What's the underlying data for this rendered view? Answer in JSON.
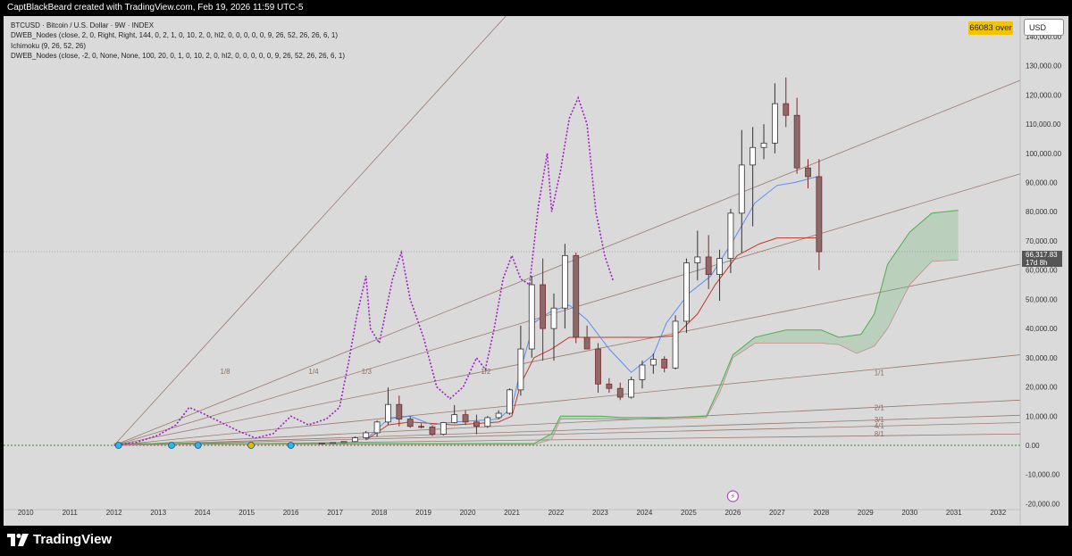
{
  "header": {
    "author_line": "CaptBlackBeard created with TradingView.com, Feb 19, 2026 11:59 UTC-5"
  },
  "legend": {
    "symbol": "BTCUSD · Bitcoin / U.S. Dollar · 9W · INDEX",
    "indicator_1": "DWEB_Nodes (close, 2, 0, Right, Right, 144, 0, 2, 1, 0, 10, 2, 0, hl2, 0, 0, 0, 0, 0, 9, 26, 52, 26, 26, 6, 1)",
    "indicator_2": "Ichimoku (9, 26, 52, 26)",
    "indicator_3": "DWEB_Nodes (close, -2, 0, None, None, 100, 20, 0, 1, 0, 10, 2, 0, hl2, 0, 0, 0, 0, 0, 9, 26, 52, 26, 26, 6, 1)"
  },
  "badges": {
    "over": "66083 over",
    "currency": "USD",
    "last_price": "66,317.83",
    "countdown": "17d 8h"
  },
  "branding": {
    "logo_text": "TradingView"
  },
  "colors": {
    "plot_bg": "#dadada",
    "up_candle": "#ffffff",
    "down_candle": "#8c6a6a",
    "wick": "#7a2a2a",
    "tenkan": "#5a8ef0",
    "kijun": "#c0392b",
    "dotted_overlay": "#a020c0",
    "cloud_green": "#4caf50",
    "fan_line": "#9a7a70"
  },
  "chart_data": {
    "type": "candlestick",
    "timeframe": "9W",
    "y_axis": {
      "ticks": [
        -20000,
        -10000,
        0,
        10000,
        20000,
        30000,
        40000,
        50000,
        60000,
        70000,
        80000,
        90000,
        100000,
        110000,
        120000,
        130000,
        140000
      ],
      "tick_labels": [
        "-20,000.00",
        "-10,000.00",
        "0.00",
        "10,000.00",
        "20,000.00",
        "30,000.00",
        "40,000.00",
        "50,000.00",
        "60,000.00",
        "70,000.00",
        "80,000.00",
        "90,000.00",
        "100,000.00",
        "110,000.00",
        "120,000.00",
        "130,000.00",
        "140,000.00"
      ],
      "range": [
        -22000,
        147000
      ]
    },
    "x_axis": {
      "labels": [
        "2010",
        "2011",
        "2012",
        "2013",
        "2014",
        "2015",
        "2016",
        "2017",
        "2018",
        "2019",
        "2020",
        "2021",
        "2022",
        "2023",
        "2024",
        "2025",
        "2026",
        "2027",
        "2028",
        "2029",
        "2030",
        "2031",
        "2032"
      ],
      "range": [
        2009.5,
        2032.5
      ]
    },
    "candles": [
      {
        "t": 2016.7,
        "o": 600,
        "h": 800,
        "l": 580,
        "c": 780
      },
      {
        "t": 2016.95,
        "o": 780,
        "h": 1000,
        "l": 740,
        "c": 960
      },
      {
        "t": 2017.2,
        "o": 960,
        "h": 1350,
        "l": 900,
        "c": 1300
      },
      {
        "t": 2017.45,
        "o": 1300,
        "h": 3000,
        "l": 1200,
        "c": 2600
      },
      {
        "t": 2017.7,
        "o": 2600,
        "h": 4900,
        "l": 2000,
        "c": 4300
      },
      {
        "t": 2017.95,
        "o": 4300,
        "h": 8500,
        "l": 3000,
        "c": 8000
      },
      {
        "t": 2018.2,
        "o": 8000,
        "h": 19800,
        "l": 7000,
        "c": 14000
      },
      {
        "t": 2018.45,
        "o": 14000,
        "h": 17000,
        "l": 6500,
        "c": 9000
      },
      {
        "t": 2018.7,
        "o": 9000,
        "h": 10000,
        "l": 6000,
        "c": 6500
      },
      {
        "t": 2018.95,
        "o": 6500,
        "h": 7500,
        "l": 5800,
        "c": 6300
      },
      {
        "t": 2019.2,
        "o": 6300,
        "h": 6700,
        "l": 3200,
        "c": 3800
      },
      {
        "t": 2019.45,
        "o": 3800,
        "h": 8000,
        "l": 3400,
        "c": 7800
      },
      {
        "t": 2019.7,
        "o": 7800,
        "h": 13800,
        "l": 7500,
        "c": 10500
      },
      {
        "t": 2019.95,
        "o": 10500,
        "h": 12000,
        "l": 7000,
        "c": 8000
      },
      {
        "t": 2020.2,
        "o": 8000,
        "h": 10500,
        "l": 3800,
        "c": 6500
      },
      {
        "t": 2020.45,
        "o": 6500,
        "h": 10000,
        "l": 6000,
        "c": 9500
      },
      {
        "t": 2020.7,
        "o": 9500,
        "h": 12000,
        "l": 9000,
        "c": 11000
      },
      {
        "t": 2020.95,
        "o": 11000,
        "h": 19500,
        "l": 10500,
        "c": 19000
      },
      {
        "t": 2021.2,
        "o": 19000,
        "h": 41000,
        "l": 17000,
        "c": 33000
      },
      {
        "t": 2021.45,
        "o": 33000,
        "h": 58000,
        "l": 30000,
        "c": 55000
      },
      {
        "t": 2021.7,
        "o": 55000,
        "h": 64000,
        "l": 29000,
        "c": 40000
      },
      {
        "t": 2021.95,
        "o": 40000,
        "h": 52000,
        "l": 29000,
        "c": 47000
      },
      {
        "t": 2022.2,
        "o": 47000,
        "h": 69000,
        "l": 40000,
        "c": 65000
      },
      {
        "t": 2022.45,
        "o": 65000,
        "h": 66000,
        "l": 35000,
        "c": 37000
      },
      {
        "t": 2022.7,
        "o": 37000,
        "h": 41000,
        "l": 33000,
        "c": 33000
      },
      {
        "t": 2022.95,
        "o": 33000,
        "h": 35000,
        "l": 18000,
        "c": 21000
      },
      {
        "t": 2023.2,
        "o": 21000,
        "h": 23000,
        "l": 18000,
        "c": 19500
      },
      {
        "t": 2023.45,
        "o": 19500,
        "h": 21500,
        "l": 15500,
        "c": 16500
      },
      {
        "t": 2023.7,
        "o": 16500,
        "h": 23500,
        "l": 16000,
        "c": 22500
      },
      {
        "t": 2023.95,
        "o": 22500,
        "h": 29000,
        "l": 19500,
        "c": 27500
      },
      {
        "t": 2024.2,
        "o": 27500,
        "h": 31500,
        "l": 24500,
        "c": 29500
      },
      {
        "t": 2024.45,
        "o": 29500,
        "h": 30500,
        "l": 25000,
        "c": 26500
      },
      {
        "t": 2024.7,
        "o": 26500,
        "h": 44500,
        "l": 26000,
        "c": 42500
      },
      {
        "t": 2024.95,
        "o": 42500,
        "h": 64000,
        "l": 38500,
        "c": 62500
      },
      {
        "t": 2025.2,
        "o": 62500,
        "h": 73500,
        "l": 56500,
        "c": 64500
      },
      {
        "t": 2025.45,
        "o": 64500,
        "h": 72000,
        "l": 53500,
        "c": 58500
      },
      {
        "t": 2025.7,
        "o": 58500,
        "h": 67000,
        "l": 49500,
        "c": 64000
      },
      {
        "t": 2025.95,
        "o": 64000,
        "h": 81000,
        "l": 59000,
        "c": 79500
      },
      {
        "t": 2026.2,
        "o": 79500,
        "h": 108000,
        "l": 66000,
        "c": 96000
      },
      {
        "t": 2026.45,
        "o": 96000,
        "h": 109000,
        "l": 75000,
        "c": 102000
      },
      {
        "t": 2026.7,
        "o": 102000,
        "h": 110000,
        "l": 98000,
        "c": 103500
      },
      {
        "t": 2026.95,
        "o": 103500,
        "h": 124000,
        "l": 100000,
        "c": 117000
      },
      {
        "t": 2027.2,
        "o": 117000,
        "h": 126000,
        "l": 109000,
        "c": 113000
      },
      {
        "t": 2027.45,
        "o": 113000,
        "h": 119000,
        "l": 93000,
        "c": 95000
      },
      {
        "t": 2027.7,
        "o": 95000,
        "h": 98000,
        "l": 88000,
        "c": 92000
      },
      {
        "t": 2027.95,
        "o": 92000,
        "h": 98000,
        "l": 60000,
        "c": 66300
      }
    ],
    "tenkan": [
      [
        2017.7,
        2000
      ],
      [
        2018.2,
        9000
      ],
      [
        2018.7,
        10000
      ],
      [
        2019.2,
        7000
      ],
      [
        2019.7,
        8000
      ],
      [
        2020.2,
        8500
      ],
      [
        2020.7,
        9000
      ],
      [
        2021.0,
        13000
      ],
      [
        2021.2,
        26000
      ],
      [
        2021.5,
        42000
      ],
      [
        2021.9,
        46000
      ],
      [
        2022.3,
        48000
      ],
      [
        2022.7,
        43000
      ],
      [
        2023.2,
        33000
      ],
      [
        2023.7,
        25000
      ],
      [
        2024.2,
        31000
      ],
      [
        2024.5,
        42000
      ],
      [
        2025.0,
        52000
      ],
      [
        2025.5,
        58000
      ],
      [
        2026.0,
        70000
      ],
      [
        2026.5,
        83000
      ],
      [
        2027.0,
        89000
      ],
      [
        2027.4,
        90000
      ],
      [
        2027.9,
        92000
      ]
    ],
    "kijun": [
      [
        2017.7,
        1800
      ],
      [
        2018.2,
        7000
      ],
      [
        2018.7,
        8000
      ],
      [
        2019.2,
        7500
      ],
      [
        2019.7,
        7000
      ],
      [
        2020.2,
        7500
      ],
      [
        2020.7,
        8000
      ],
      [
        2021.0,
        10000
      ],
      [
        2021.2,
        21000
      ],
      [
        2021.5,
        30000
      ],
      [
        2021.9,
        33000
      ],
      [
        2022.3,
        37000
      ],
      [
        2022.7,
        37000
      ],
      [
        2023.2,
        37000
      ],
      [
        2023.7,
        37000
      ],
      [
        2024.2,
        37000
      ],
      [
        2024.7,
        37500
      ],
      [
        2025.2,
        45000
      ],
      [
        2025.6,
        55000
      ],
      [
        2026.1,
        65000
      ],
      [
        2026.6,
        69000
      ],
      [
        2027.0,
        71000
      ],
      [
        2027.9,
        71000
      ]
    ],
    "cloud_upper": [
      [
        2012.0,
        600
      ],
      [
        2021.5,
        600
      ],
      [
        2021.9,
        4000
      ],
      [
        2022.1,
        10000
      ],
      [
        2023.0,
        10000
      ],
      [
        2023.5,
        9500
      ],
      [
        2024.5,
        9500
      ],
      [
        2025.4,
        10000
      ],
      [
        2025.7,
        20000
      ],
      [
        2026.0,
        31000
      ],
      [
        2026.5,
        37000
      ],
      [
        2027.2,
        39500
      ],
      [
        2028.0,
        39500
      ],
      [
        2028.4,
        37000
      ],
      [
        2028.9,
        38000
      ],
      [
        2029.2,
        45000
      ],
      [
        2029.5,
        62000
      ],
      [
        2030.0,
        73000
      ],
      [
        2030.5,
        79500
      ],
      [
        2031.1,
        80500
      ]
    ],
    "cloud_lower": [
      [
        2012.0,
        300
      ],
      [
        2021.5,
        300
      ],
      [
        2021.9,
        2000
      ],
      [
        2022.1,
        9000
      ],
      [
        2023.0,
        9000
      ],
      [
        2023.5,
        9000
      ],
      [
        2024.5,
        9000
      ],
      [
        2025.4,
        9500
      ],
      [
        2025.7,
        18000
      ],
      [
        2026.0,
        30000
      ],
      [
        2026.5,
        35000
      ],
      [
        2027.2,
        35000
      ],
      [
        2028.0,
        35000
      ],
      [
        2028.4,
        34500
      ],
      [
        2028.8,
        31500
      ],
      [
        2029.2,
        34000
      ],
      [
        2029.5,
        40000
      ],
      [
        2030.0,
        55000
      ],
      [
        2030.5,
        63000
      ],
      [
        2031.1,
        63500
      ]
    ],
    "dotted_overlay": [
      [
        2012.0,
        0
      ],
      [
        2012.5,
        1000
      ],
      [
        2013.0,
        3500
      ],
      [
        2013.4,
        7000
      ],
      [
        2013.7,
        13000
      ],
      [
        2014.0,
        11000
      ],
      [
        2014.4,
        8000
      ],
      [
        2014.8,
        5000
      ],
      [
        2015.2,
        2500
      ],
      [
        2015.6,
        4000
      ],
      [
        2016.0,
        10000
      ],
      [
        2016.4,
        7000
      ],
      [
        2016.8,
        9000
      ],
      [
        2017.1,
        13000
      ],
      [
        2017.3,
        28000
      ],
      [
        2017.5,
        45000
      ],
      [
        2017.7,
        58000
      ],
      [
        2017.8,
        40000
      ],
      [
        2018.0,
        35000
      ],
      [
        2018.3,
        57000
      ],
      [
        2018.5,
        66000
      ],
      [
        2018.7,
        50000
      ],
      [
        2019.0,
        37000
      ],
      [
        2019.3,
        20000
      ],
      [
        2019.6,
        16000
      ],
      [
        2019.9,
        20000
      ],
      [
        2020.2,
        30000
      ],
      [
        2020.4,
        26000
      ],
      [
        2020.6,
        40000
      ],
      [
        2020.8,
        57000
      ],
      [
        2021.0,
        65000
      ],
      [
        2021.2,
        57000
      ],
      [
        2021.4,
        55000
      ],
      [
        2021.6,
        82000
      ],
      [
        2021.8,
        100000
      ],
      [
        2021.9,
        80000
      ],
      [
        2022.1,
        94000
      ],
      [
        2022.3,
        112000
      ],
      [
        2022.5,
        119000
      ],
      [
        2022.7,
        110000
      ],
      [
        2022.9,
        80000
      ],
      [
        2023.1,
        65000
      ],
      [
        2023.3,
        56000
      ]
    ],
    "fan_lines": [
      {
        "label": "1/8",
        "from": [
          2012.0,
          0
        ],
        "to": [
          2032.5,
          340000
        ]
      },
      {
        "label": "1/4",
        "from": [
          2012.0,
          0
        ],
        "to": [
          2032.5,
          125000
        ]
      },
      {
        "label": "1/3",
        "from": [
          2012.0,
          0
        ],
        "to": [
          2032.5,
          93000
        ]
      },
      {
        "label": "1/2",
        "from": [
          2012.0,
          0
        ],
        "to": [
          2032.5,
          62000
        ]
      },
      {
        "label": "1/1",
        "from": [
          2012.0,
          0
        ],
        "to": [
          2032.5,
          31000
        ]
      },
      {
        "label": "2/1",
        "from": [
          2012.0,
          0
        ],
        "to": [
          2032.5,
          15500
        ]
      },
      {
        "label": "3/1",
        "from": [
          2012.0,
          0
        ],
        "to": [
          2032.5,
          10300
        ]
      },
      {
        "label": "4/1",
        "from": [
          2012.0,
          0
        ],
        "to": [
          2032.5,
          7800
        ]
      },
      {
        "label": "8/1",
        "from": [
          2012.0,
          0
        ],
        "to": [
          2032.5,
          3900
        ]
      }
    ],
    "fan_label_positions": [
      [
        2014.4,
        24500
      ],
      [
        2016.4,
        24500
      ],
      [
        2017.6,
        24500
      ],
      [
        2020.3,
        24500
      ],
      [
        2029.2,
        24000
      ],
      [
        2029.2,
        12000
      ],
      [
        2029.2,
        8000
      ],
      [
        2029.2,
        5800
      ],
      [
        2029.2,
        3000
      ]
    ],
    "markers": [
      {
        "t": 2012.1,
        "color": "#29b6f6"
      },
      {
        "t": 2013.3,
        "color": "#29b6f6"
      },
      {
        "t": 2013.9,
        "color": "#29b6f6"
      },
      {
        "t": 2015.1,
        "color": "#e6b800"
      },
      {
        "t": 2016.0,
        "color": "#29b6f6"
      }
    ],
    "last_price": 66317.83
  }
}
